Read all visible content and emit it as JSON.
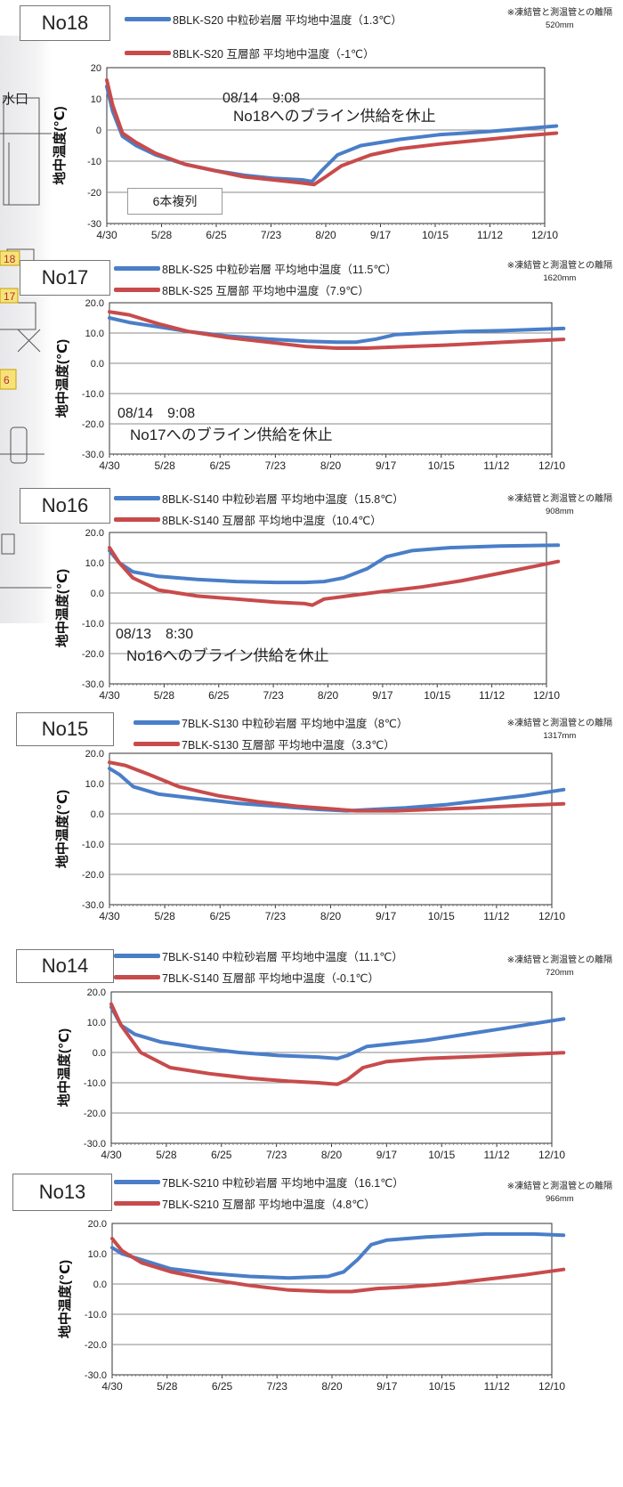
{
  "colors": {
    "blue": "#4a7ec8",
    "red": "#c84b4b",
    "grid": "#8a8a8a"
  },
  "map_labels": [
    "水口",
    "18",
    "17",
    "6"
  ],
  "chart_data": [
    {
      "type": "line",
      "panel_label": "No18",
      "ylabel": "地中温度(℃)",
      "ylim": [
        -30,
        20
      ],
      "yticks": [
        "20",
        "10",
        "0",
        "-10",
        "-20",
        "-30"
      ],
      "x_tick_labels": [
        "4/30",
        "5/28",
        "6/25",
        "7/23",
        "8/20",
        "9/17",
        "10/15",
        "11/12",
        "12/10"
      ],
      "note": "※凍結管と測温管との離隔",
      "distance": "520mm",
      "annotations": [
        "08/14　9:08",
        "No18へのブライン供給を休止",
        "6本複列"
      ],
      "series": [
        {
          "name": "8BLK-S20 中粒砂岩層 平均地中温度（1.3℃）",
          "color": "#4a7ec8",
          "points": [
            [
              0,
              14
            ],
            [
              3,
              6
            ],
            [
              8,
              -2
            ],
            [
              15,
              -5
            ],
            [
              25,
              -8
            ],
            [
              40,
              -11
            ],
            [
              55,
              -13
            ],
            [
              70,
              -14.5
            ],
            [
              85,
              -15.5
            ],
            [
              100,
              -16
            ],
            [
              105,
              -16.5
            ],
            [
              110,
              -13
            ],
            [
              118,
              -8
            ],
            [
              130,
              -5
            ],
            [
              150,
              -3
            ],
            [
              170,
              -1.5
            ],
            [
              195,
              -0.5
            ],
            [
              215,
              0.5
            ],
            [
              230,
              1.3
            ]
          ]
        },
        {
          "name": "8BLK-S20 互層部 平均地中温度（-1℃）",
          "color": "#c84b4b",
          "points": [
            [
              0,
              16
            ],
            [
              3,
              8
            ],
            [
              8,
              -1
            ],
            [
              15,
              -4
            ],
            [
              25,
              -7.5
            ],
            [
              40,
              -11
            ],
            [
              55,
              -13
            ],
            [
              70,
              -15
            ],
            [
              85,
              -16
            ],
            [
              100,
              -17
            ],
            [
              106,
              -17.5
            ],
            [
              112,
              -15
            ],
            [
              120,
              -11.5
            ],
            [
              135,
              -8
            ],
            [
              150,
              -6
            ],
            [
              170,
              -4.5
            ],
            [
              195,
              -3
            ],
            [
              215,
              -1.8
            ],
            [
              230,
              -1
            ]
          ]
        }
      ]
    },
    {
      "type": "line",
      "panel_label": "No17",
      "ylabel": "地中温度(℃)",
      "ylim": [
        -30,
        20
      ],
      "yticks": [
        "20.0",
        "10.0",
        "0.0",
        "-10.0",
        "-20.0",
        "-30.0"
      ],
      "x_tick_labels": [
        "4/30",
        "5/28",
        "6/25",
        "7/23",
        "8/20",
        "9/17",
        "10/15",
        "11/12",
        "12/10"
      ],
      "note": "※凍結管と測温管との離隔",
      "distance": "1620mm",
      "annotations": [
        "08/14　9:08",
        "No17へのブライン供給を休止"
      ],
      "series": [
        {
          "name": "8BLK-S25 中粒砂岩層 平均地中温度（11.5℃）",
          "color": "#4a7ec8",
          "points": [
            [
              0,
              15
            ],
            [
              10,
              13.5
            ],
            [
              25,
              12
            ],
            [
              40,
              10.5
            ],
            [
              60,
              9
            ],
            [
              80,
              8
            ],
            [
              100,
              7.3
            ],
            [
              115,
              7
            ],
            [
              125,
              7
            ],
            [
              135,
              8
            ],
            [
              145,
              9.5
            ],
            [
              160,
              10
            ],
            [
              180,
              10.5
            ],
            [
              200,
              10.8
            ],
            [
              230,
              11.5
            ]
          ]
        },
        {
          "name": "8BLK-S25 互層部 平均地中温度（7.9℃）",
          "color": "#c84b4b",
          "points": [
            [
              0,
              17
            ],
            [
              10,
              16
            ],
            [
              25,
              13
            ],
            [
              40,
              10.5
            ],
            [
              60,
              8.5
            ],
            [
              80,
              7
            ],
            [
              100,
              5.5
            ],
            [
              115,
              5
            ],
            [
              130,
              5
            ],
            [
              150,
              5.5
            ],
            [
              170,
              6
            ],
            [
              200,
              7
            ],
            [
              230,
              7.9
            ]
          ]
        }
      ]
    },
    {
      "type": "line",
      "panel_label": "No16",
      "ylabel": "地中温度(℃)",
      "ylim": [
        -30,
        20
      ],
      "yticks": [
        "20.0",
        "10.0",
        "0.0",
        "-10.0",
        "-20.0",
        "-30.0"
      ],
      "x_tick_labels": [
        "4/30",
        "5/28",
        "6/25",
        "7/23",
        "8/20",
        "9/17",
        "10/15",
        "11/12",
        "12/10"
      ],
      "note": "※凍結管と測温管との離隔",
      "distance": "908mm",
      "annotations": [
        "08/13　8:30",
        "No16へのブライン供給を休止"
      ],
      "series": [
        {
          "name": "8BLK-S140 中粒砂岩層 平均地中温度（15.8℃）",
          "color": "#4a7ec8",
          "points": [
            [
              0,
              14
            ],
            [
              5,
              10
            ],
            [
              12,
              7
            ],
            [
              25,
              5.5
            ],
            [
              45,
              4.5
            ],
            [
              65,
              3.8
            ],
            [
              85,
              3.5
            ],
            [
              100,
              3.5
            ],
            [
              110,
              3.8
            ],
            [
              120,
              5
            ],
            [
              132,
              8
            ],
            [
              142,
              12
            ],
            [
              155,
              14
            ],
            [
              175,
              15
            ],
            [
              200,
              15.5
            ],
            [
              230,
              15.8
            ]
          ]
        },
        {
          "name": "8BLK-S140 互層部 平均地中温度（10.4℃）",
          "color": "#c84b4b",
          "points": [
            [
              0,
              15
            ],
            [
              5,
              10
            ],
            [
              12,
              5
            ],
            [
              25,
              1
            ],
            [
              45,
              -1
            ],
            [
              65,
              -2
            ],
            [
              85,
              -3
            ],
            [
              100,
              -3.5
            ],
            [
              104,
              -4
            ],
            [
              110,
              -2
            ],
            [
              122,
              -1
            ],
            [
              140,
              0.5
            ],
            [
              160,
              2
            ],
            [
              180,
              4
            ],
            [
              200,
              6.5
            ],
            [
              230,
              10.4
            ]
          ]
        }
      ]
    },
    {
      "type": "line",
      "panel_label": "No15",
      "ylabel": "地中温度(℃)",
      "ylim": [
        -30,
        20
      ],
      "yticks": [
        "20.0",
        "10.0",
        "0.0",
        "-10.0",
        "-20.0",
        "-30.0"
      ],
      "x_tick_labels": [
        "4/30",
        "5/28",
        "6/25",
        "7/23",
        "8/20",
        "9/17",
        "10/15",
        "11/12",
        "12/10"
      ],
      "note": "※凍結管と測温管との離隔",
      "distance": "1317mm",
      "series": [
        {
          "name": "7BLK-S130 中粒砂岩層 平均地中温度（8℃）",
          "color": "#4a7ec8",
          "points": [
            [
              0,
              15
            ],
            [
              5,
              13
            ],
            [
              12,
              9
            ],
            [
              25,
              6.5
            ],
            [
              45,
              5
            ],
            [
              65,
              3.5
            ],
            [
              85,
              2.5
            ],
            [
              105,
              1.5
            ],
            [
              120,
              1
            ],
            [
              135,
              1.5
            ],
            [
              150,
              2
            ],
            [
              170,
              3
            ],
            [
              190,
              4.5
            ],
            [
              210,
              6
            ],
            [
              230,
              8
            ]
          ]
        },
        {
          "name": "7BLK-S130 互層部 平均地中温度（3.3℃）",
          "color": "#c84b4b",
          "points": [
            [
              0,
              17
            ],
            [
              8,
              16
            ],
            [
              20,
              13
            ],
            [
              35,
              9
            ],
            [
              55,
              6
            ],
            [
              75,
              4
            ],
            [
              95,
              2.5
            ],
            [
              115,
              1.5
            ],
            [
              125,
              1
            ],
            [
              145,
              1
            ],
            [
              165,
              1.5
            ],
            [
              185,
              2
            ],
            [
              210,
              2.8
            ],
            [
              230,
              3.3
            ]
          ]
        }
      ]
    },
    {
      "type": "line",
      "panel_label": "No14",
      "ylabel": "地中温度(℃)",
      "ylim": [
        -30,
        20
      ],
      "yticks": [
        "20.0",
        "10.0",
        "0.0",
        "-10.0",
        "-20.0",
        "-30.0"
      ],
      "x_tick_labels": [
        "4/30",
        "5/28",
        "6/25",
        "7/23",
        "8/20",
        "9/17",
        "10/15",
        "11/12",
        "12/10"
      ],
      "note": "※凍結管と測温管との離隔",
      "distance": "720mm",
      "series": [
        {
          "name": "7BLK-S140 中粒砂岩層 平均地中温度（11.1℃）",
          "color": "#4a7ec8",
          "points": [
            [
              0,
              15
            ],
            [
              5,
              9
            ],
            [
              12,
              6
            ],
            [
              25,
              3.5
            ],
            [
              45,
              1.5
            ],
            [
              65,
              0
            ],
            [
              85,
              -1
            ],
            [
              105,
              -1.5
            ],
            [
              115,
              -2
            ],
            [
              120,
              -1
            ],
            [
              130,
              2
            ],
            [
              145,
              3
            ],
            [
              160,
              4
            ],
            [
              180,
              6
            ],
            [
              200,
              8
            ],
            [
              230,
              11.1
            ]
          ]
        },
        {
          "name": "7BLK-S140 互層部 平均地中温度（-0.1℃）",
          "color": "#c84b4b",
          "points": [
            [
              0,
              16
            ],
            [
              5,
              9
            ],
            [
              15,
              0
            ],
            [
              30,
              -5
            ],
            [
              50,
              -7
            ],
            [
              70,
              -8.5
            ],
            [
              90,
              -9.5
            ],
            [
              105,
              -10
            ],
            [
              115,
              -10.5
            ],
            [
              120,
              -9
            ],
            [
              128,
              -5
            ],
            [
              140,
              -3
            ],
            [
              160,
              -2
            ],
            [
              190,
              -1.2
            ],
            [
              230,
              -0.1
            ]
          ]
        }
      ]
    },
    {
      "type": "line",
      "panel_label": "No13",
      "ylabel": "地中温度(℃)",
      "ylim": [
        -30,
        20
      ],
      "yticks": [
        "20.0",
        "10.0",
        "0.0",
        "-10.0",
        "-20.0",
        "-30.0"
      ],
      "x_tick_labels": [
        "4/30",
        "5/28",
        "6/25",
        "7/23",
        "8/20",
        "9/17",
        "10/15",
        "11/12",
        "12/10"
      ],
      "note": "※凍結管と測温管との離隔",
      "distance": "966mm",
      "series": [
        {
          "name": "7BLK-S210 中粒砂岩層 平均地中温度（16.1℃）",
          "color": "#4a7ec8",
          "points": [
            [
              0,
              12
            ],
            [
              5,
              10
            ],
            [
              15,
              8
            ],
            [
              30,
              5
            ],
            [
              50,
              3.5
            ],
            [
              70,
              2.5
            ],
            [
              90,
              2
            ],
            [
              110,
              2.5
            ],
            [
              118,
              4
            ],
            [
              125,
              8
            ],
            [
              132,
              13
            ],
            [
              140,
              14.5
            ],
            [
              160,
              15.5
            ],
            [
              190,
              16.5
            ],
            [
              215,
              16.5
            ],
            [
              230,
              16.1
            ]
          ]
        },
        {
          "name": "7BLK-S210 互層部 平均地中温度（4.8℃）",
          "color": "#c84b4b",
          "points": [
            [
              0,
              15
            ],
            [
              5,
              11
            ],
            [
              15,
              7
            ],
            [
              30,
              4
            ],
            [
              50,
              1.5
            ],
            [
              70,
              -0.5
            ],
            [
              90,
              -2
            ],
            [
              110,
              -2.5
            ],
            [
              122,
              -2.5
            ],
            [
              135,
              -1.5
            ],
            [
              150,
              -1
            ],
            [
              170,
              0
            ],
            [
              190,
              1.5
            ],
            [
              210,
              3
            ],
            [
              230,
              4.8
            ]
          ]
        }
      ]
    }
  ]
}
